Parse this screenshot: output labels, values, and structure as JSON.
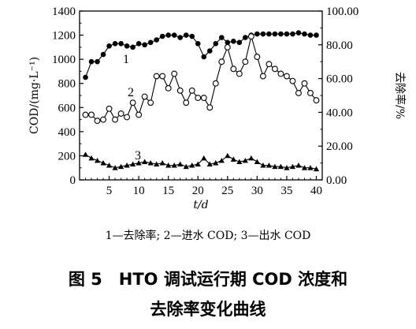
{
  "chart_data": {
    "type": "line",
    "xlabel": "t/d",
    "ylabel_left": "COD/(mg·L⁻¹)",
    "ylabel_right": "去除率/%",
    "x_ticks": [
      5,
      10,
      15,
      20,
      25,
      30,
      35,
      40
    ],
    "y_left_ticks": [
      0,
      200,
      400,
      600,
      800,
      1000,
      1200,
      1400
    ],
    "y_right_ticks": [
      "0.00",
      "20.00",
      "40.00",
      "60.00",
      "80.00",
      "100.00"
    ],
    "xlim": [
      0,
      41
    ],
    "ylim_left": [
      0,
      1400
    ],
    "ylim_right": [
      0,
      100
    ],
    "series": [
      {
        "name": "1",
        "marker": "filled-circle",
        "axis": "right",
        "x": [
          1,
          2,
          3,
          4,
          5,
          6,
          7,
          8,
          9,
          10,
          11,
          12,
          13,
          14,
          15,
          16,
          17,
          18,
          19,
          20,
          21,
          22,
          23,
          24,
          25,
          26,
          27,
          28,
          29,
          30,
          31,
          32,
          33,
          34,
          35,
          36,
          37,
          38,
          39,
          40
        ],
        "values": [
          60.7,
          70.0,
          70.0,
          74.3,
          79.3,
          80.7,
          80.7,
          79.3,
          78.6,
          80.7,
          80.0,
          81.4,
          82.9,
          85.0,
          85.7,
          85.7,
          84.3,
          85.7,
          85.0,
          80.7,
          72.9,
          76.4,
          80.7,
          84.3,
          81.4,
          82.1,
          81.4,
          84.3,
          85.7,
          86.4,
          86.4,
          86.4,
          86.4,
          86.4,
          86.4,
          86.4,
          87.1,
          86.4,
          85.7,
          85.7
        ]
      },
      {
        "name": "2",
        "marker": "open-circle",
        "axis": "left",
        "x": [
          1,
          2,
          3,
          4,
          5,
          6,
          7,
          8,
          9,
          10,
          11,
          12,
          13,
          14,
          15,
          16,
          17,
          18,
          19,
          20,
          21,
          22,
          23,
          24,
          25,
          26,
          27,
          28,
          29,
          30,
          31,
          32,
          33,
          34,
          35,
          36,
          37,
          38,
          39,
          40
        ],
        "values": [
          540,
          540,
          490,
          500,
          590,
          500,
          550,
          520,
          640,
          540,
          690,
          640,
          860,
          860,
          760,
          880,
          740,
          640,
          740,
          680,
          680,
          600,
          800,
          980,
          1100,
          920,
          880,
          980,
          1190,
          1020,
          860,
          960,
          920,
          880,
          860,
          820,
          720,
          800,
          720,
          660
        ]
      },
      {
        "name": "3",
        "marker": "filled-triangle",
        "axis": "left",
        "x": [
          1,
          2,
          3,
          4,
          5,
          6,
          7,
          8,
          9,
          10,
          11,
          12,
          13,
          14,
          15,
          16,
          17,
          18,
          19,
          20,
          21,
          22,
          23,
          24,
          25,
          26,
          27,
          28,
          29,
          30,
          31,
          32,
          33,
          34,
          35,
          36,
          37,
          38,
          39,
          40
        ],
        "values": [
          210,
          180,
          160,
          140,
          120,
          100,
          110,
          120,
          130,
          140,
          150,
          140,
          130,
          140,
          120,
          120,
          130,
          110,
          120,
          130,
          180,
          130,
          140,
          160,
          200,
          170,
          150,
          160,
          180,
          150,
          120,
          120,
          110,
          110,
          100,
          110,
          120,
          100,
          100,
          90
        ]
      }
    ]
  },
  "legend_text": "1—去除率; 2—进水 COD; 3—出水 COD",
  "caption": {
    "line1": "图 5　HTO 调试运行期 COD 浓度和",
    "line2": "去除率变化曲线"
  }
}
